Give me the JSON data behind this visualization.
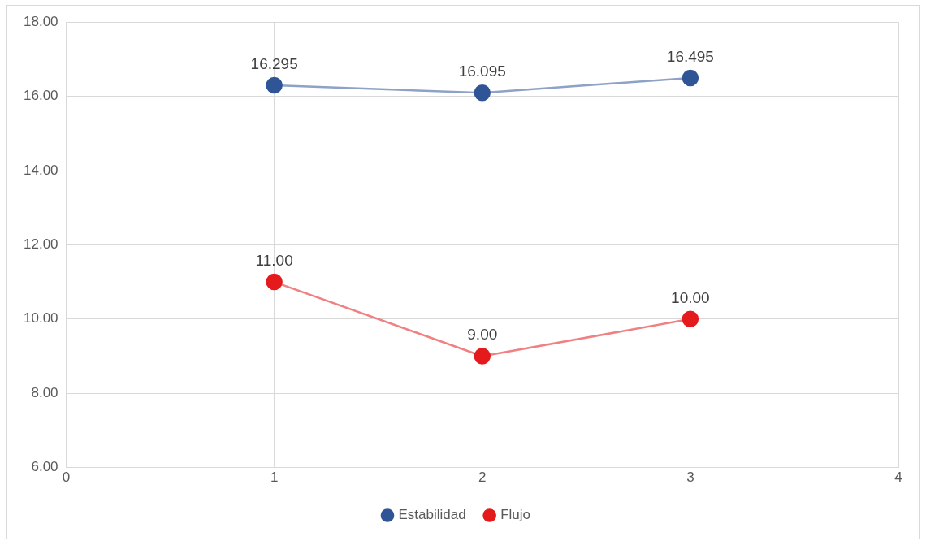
{
  "chart_data": {
    "type": "line",
    "x": [
      1,
      2,
      3
    ],
    "series": [
      {
        "name": "Estabilidad",
        "color": "#2f5597",
        "values": [
          16.295,
          16.095,
          16.495
        ],
        "value_labels": [
          "16.295",
          "16.095",
          "16.495"
        ]
      },
      {
        "name": "Flujo",
        "color": "#e41a1c",
        "values": [
          11,
          9,
          10
        ],
        "value_labels": [
          "11.00",
          "9.00",
          "10.00"
        ]
      }
    ],
    "xlim": [
      0,
      4
    ],
    "xticks": [
      0,
      1,
      2,
      3,
      4
    ],
    "ylim": [
      6,
      18
    ],
    "yticks": [
      {
        "value": 6,
        "label": "6.00"
      },
      {
        "value": 8,
        "label": "8.00"
      },
      {
        "value": 10,
        "label": "10.00"
      },
      {
        "value": 12,
        "label": "12.00"
      },
      {
        "value": 14,
        "label": "14.00"
      },
      {
        "value": 16,
        "label": "16.00"
      },
      {
        "value": 18,
        "label": "18.00"
      }
    ],
    "grid": true,
    "legend": "bottom",
    "marker": "circle",
    "line_style": "solid"
  }
}
